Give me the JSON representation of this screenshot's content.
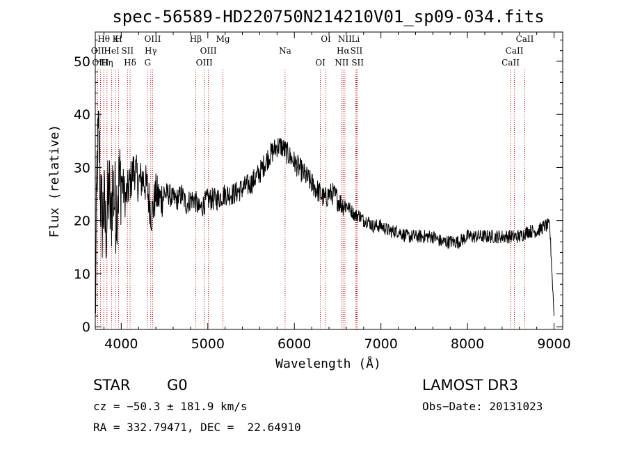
{
  "chart_data": {
    "type": "line",
    "title": "spec-56589-HD220750N214210V01_sp09-034.fits",
    "xlabel": "Wavelength (Å)",
    "ylabel": "Flux (relative)",
    "xlim": [
      3700,
      9100
    ],
    "ylim": [
      -0.5,
      55.5
    ],
    "xticks": [
      4000,
      5000,
      6000,
      7000,
      8000,
      9000
    ],
    "yticks": [
      0,
      10,
      20,
      30,
      40,
      50
    ],
    "grid": false,
    "series": [
      {
        "x": [
          3700,
          3720,
          3740,
          3760,
          3780,
          3800,
          3820,
          3840,
          3860,
          3880,
          3900,
          3920,
          3940,
          3960,
          3980,
          4000,
          4050,
          4100,
          4150,
          4200,
          4250,
          4300,
          4350,
          4400,
          4450,
          4500,
          4550,
          4600,
          4650,
          4700,
          4750,
          4800,
          4850,
          4900,
          4950,
          5000,
          5100,
          5200,
          5300,
          5400,
          5500,
          5600,
          5700,
          5800,
          5850,
          5900,
          5950,
          6000,
          6050,
          6100,
          6150,
          6200,
          6250,
          6300,
          6350,
          6400,
          6450,
          6500,
          6550,
          6600,
          6650,
          6700,
          6750,
          6800,
          6850,
          6900,
          7000,
          7100,
          7200,
          7300,
          7400,
          7500,
          7600,
          7700,
          7800,
          7900,
          8000,
          8100,
          8200,
          8300,
          8400,
          8500,
          8600,
          8700,
          8800,
          8900,
          8950,
          9000
        ],
        "y": [
          0,
          30,
          36,
          25,
          20,
          23,
          18,
          22,
          26,
          19,
          27,
          24,
          22,
          26,
          27,
          28,
          24,
          27,
          30,
          27,
          28,
          26,
          21,
          25,
          24,
          25,
          25,
          24,
          24,
          25,
          23,
          24,
          24,
          22,
          23,
          24,
          24,
          25,
          25,
          26,
          27,
          29,
          32,
          34,
          34,
          33,
          32,
          31,
          30,
          29,
          28,
          27,
          26,
          25,
          24,
          25,
          25,
          24,
          23,
          23,
          22,
          21,
          21,
          20,
          20,
          19,
          19,
          18,
          18,
          17,
          17,
          17,
          17,
          16,
          16,
          16,
          17,
          17,
          17,
          17,
          17,
          17,
          17,
          18,
          18,
          19,
          19,
          2
        ]
      }
    ],
    "line_markers": [
      {
        "label": "Hθ",
        "wave": 3798
      },
      {
        "label": "OII",
        "wave": 3727
      },
      {
        "label": "OIII",
        "wave": 3760
      },
      {
        "label": "K",
        "wave": 3934
      },
      {
        "label": "HeI",
        "wave": 3889
      },
      {
        "label": "Hη",
        "wave": 3835
      },
      {
        "label": "H",
        "wave": 3969
      },
      {
        "label": "SII",
        "wave": 4072
      },
      {
        "label": "Hδ",
        "wave": 4102
      },
      {
        "label": "OIII",
        "wave": 4363
      },
      {
        "label": "Hγ",
        "wave": 4341
      },
      {
        "label": "G",
        "wave": 4305
      },
      {
        "label": "Hβ",
        "wave": 4861
      },
      {
        "label": "OIII",
        "wave": 5007
      },
      {
        "label": "OIII",
        "wave": 4959
      },
      {
        "label": "Mg",
        "wave": 5175
      },
      {
        "label": "Na",
        "wave": 5893
      },
      {
        "label": "OI",
        "wave": 6300
      },
      {
        "label": "OI",
        "wave": 6364
      },
      {
        "label": "Hα",
        "wave": 6563
      },
      {
        "label": "NII",
        "wave": 6548
      },
      {
        "label": "NII",
        "wave": 6584
      },
      {
        "label": "SII",
        "wave": 6717
      },
      {
        "label": "SII",
        "wave": 6731
      },
      {
        "label": "Li",
        "wave": 6708
      },
      {
        "label": "CaII",
        "wave": 8542
      },
      {
        "label": "CaII",
        "wave": 8498
      },
      {
        "label": "CaII",
        "wave": 8662
      }
    ]
  },
  "info": {
    "class": "STAR",
    "subclass": "G0",
    "survey": "LAMOST DR3",
    "cz": "cz = −50.3 ± 181.9 km/s",
    "obs_date": "Obs−Date: 20131023",
    "coords": "RA = 332.79471, DEC =  22.64910"
  },
  "colors": {
    "spectrum": "#000000",
    "marker": "#c00000"
  }
}
